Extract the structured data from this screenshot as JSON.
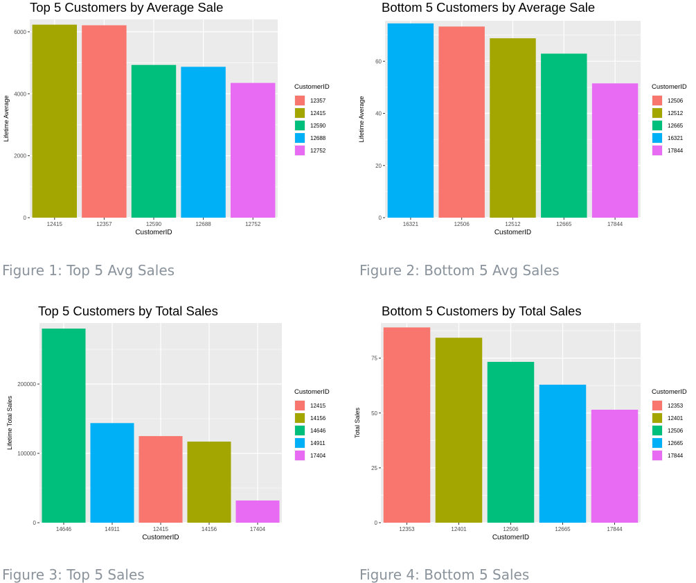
{
  "figures": [
    {
      "caption": "Figure 1: Top 5 Avg Sales",
      "chart_data": {
        "type": "bar",
        "title": "Top 5 Customers by Average Sale",
        "xlabel": "CustomerID",
        "ylabel": "Lifetime Average",
        "categories": [
          "12415",
          "12357",
          "12590",
          "12688",
          "12752"
        ],
        "values": [
          6230,
          6210,
          4930,
          4870,
          4350
        ],
        "ylim": [
          0,
          6400
        ],
        "yticks": [
          0,
          2000,
          4000,
          6000
        ],
        "ytick_labels": [
          "0",
          "2000",
          "4000",
          "6000"
        ],
        "legend": {
          "title": "CustomerID",
          "placement": "right",
          "entries": [
            "12357",
            "12415",
            "12590",
            "12688",
            "12752"
          ]
        },
        "grid": true
      }
    },
    {
      "caption": "Figure 2: Bottom 5 Avg Sales",
      "chart_data": {
        "type": "bar",
        "title": "Bottom 5 Customers by Average Sale",
        "xlabel": "CustomerID",
        "ylabel": "Lifetime Average",
        "categories": [
          "16321",
          "12506",
          "12512",
          "12665",
          "17844"
        ],
        "values": [
          74.5,
          73.3,
          68.8,
          62.9,
          51.5
        ],
        "ylim": [
          0,
          75.5
        ],
        "yticks": [
          0,
          20,
          40,
          60
        ],
        "ytick_labels": [
          "0",
          "20",
          "40",
          "60"
        ],
        "legend": {
          "title": "CustomerID",
          "placement": "right",
          "entries": [
            "12506",
            "12512",
            "12665",
            "16321",
            "17844"
          ]
        },
        "grid": true
      }
    },
    {
      "caption": "Figure 3: Top 5 Sales",
      "chart_data": {
        "type": "bar",
        "title": "Top 5 Customers by Total Sales",
        "xlabel": "CustomerID",
        "ylabel": "Lifetime Total Sales",
        "categories": [
          "14646",
          "14911",
          "12415",
          "14156",
          "17404"
        ],
        "values": [
          280000,
          143700,
          124900,
          117000,
          32000
        ],
        "ylim": [
          0,
          288000
        ],
        "yticks": [
          0,
          100000,
          200000
        ],
        "ytick_labels": [
          "0",
          "100000",
          "200000"
        ],
        "legend": {
          "title": "CustomerID",
          "placement": "right",
          "entries": [
            "12415",
            "14156",
            "14646",
            "14911",
            "17404"
          ]
        },
        "grid": true
      }
    },
    {
      "caption": "Figure 4: Bottom 5 Sales",
      "chart_data": {
        "type": "bar",
        "title": "Bottom 5 Customers by Total Sales",
        "xlabel": "CustomerID",
        "ylabel": "Total Sales",
        "categories": [
          "12353",
          "12401",
          "12506",
          "12665",
          "17844"
        ],
        "values": [
          89,
          84.3,
          73.3,
          62.9,
          51.5
        ],
        "ylim": [
          0,
          91
        ],
        "yticks": [
          0,
          25,
          50,
          75
        ],
        "ytick_labels": [
          "0",
          "25",
          "50",
          "75"
        ],
        "legend": {
          "title": "CustomerID",
          "placement": "right",
          "entries": [
            "12353",
            "12401",
            "12506",
            "12665",
            "17844"
          ]
        },
        "grid": true
      }
    }
  ],
  "palette": [
    "#F8766D",
    "#A3A500",
    "#00BF7D",
    "#00B0F6",
    "#E76BF3"
  ],
  "panel_background": "#EBEBEB",
  "grid_color": "#FFFFFF"
}
